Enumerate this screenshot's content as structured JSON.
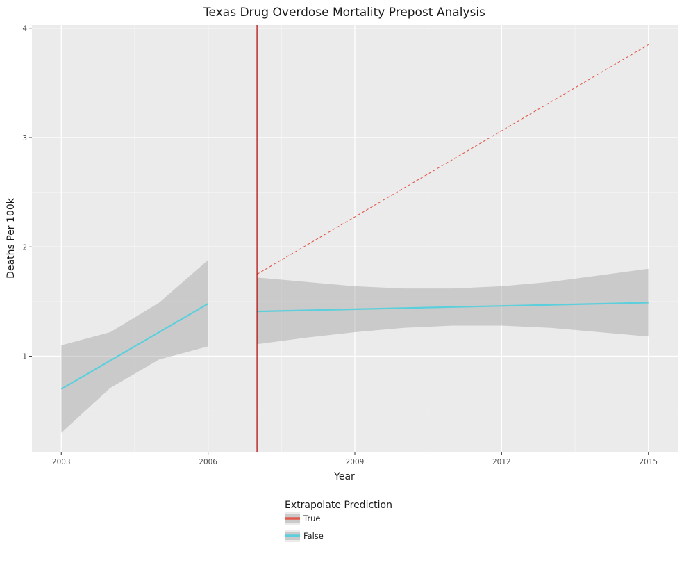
{
  "chart_data": {
    "type": "line",
    "title": "Texas Drug Overdose Mortality Prepost Analysis",
    "xlabel": "Year",
    "ylabel": "Deaths Per 100k",
    "xlim": [
      2002.4,
      2015.6
    ],
    "ylim": [
      0.12,
      4.03
    ],
    "x_ticks": [
      "2003",
      "2006",
      "2009",
      "2012",
      "2015"
    ],
    "x_tick_values": [
      2003,
      2006,
      2009,
      2012,
      2015
    ],
    "y_ticks": [
      "1",
      "2",
      "3",
      "4"
    ],
    "y_tick_values": [
      1,
      2,
      3,
      4
    ],
    "grid": true,
    "intervention_x": 2007,
    "intervention_color": "#b30000",
    "legend": {
      "title": "Extrapolate Prediction",
      "placement": "bottom",
      "entries": [
        {
          "label": "True",
          "color": "#e15a4d"
        },
        {
          "label": "False",
          "color": "#5ccfdc"
        }
      ]
    },
    "series": [
      {
        "name": "False",
        "segment": "pre",
        "color": "#5ccfdc",
        "x": [
          2003,
          2006
        ],
        "y": [
          0.7,
          1.48
        ],
        "ribbon_x": [
          2003,
          2004,
          2005,
          2006
        ],
        "ribbon_upper": [
          1.1,
          1.22,
          1.49,
          1.88
        ],
        "ribbon_lower": [
          0.3,
          0.71,
          0.97,
          1.09
        ]
      },
      {
        "name": "False",
        "segment": "post",
        "color": "#5ccfdc",
        "x": [
          2007,
          2015
        ],
        "y": [
          1.41,
          1.49
        ],
        "ribbon_x": [
          2007,
          2008,
          2009,
          2010,
          2011,
          2012,
          2013,
          2014,
          2015
        ],
        "ribbon_upper": [
          1.72,
          1.68,
          1.64,
          1.62,
          1.62,
          1.64,
          1.68,
          1.74,
          1.8
        ],
        "ribbon_lower": [
          1.11,
          1.17,
          1.22,
          1.26,
          1.28,
          1.28,
          1.26,
          1.22,
          1.18
        ]
      },
      {
        "name": "True",
        "segment": "extrapolated",
        "color": "#e15a4d",
        "dashed": true,
        "x": [
          2007,
          2015
        ],
        "y": [
          1.75,
          3.85
        ]
      }
    ]
  }
}
